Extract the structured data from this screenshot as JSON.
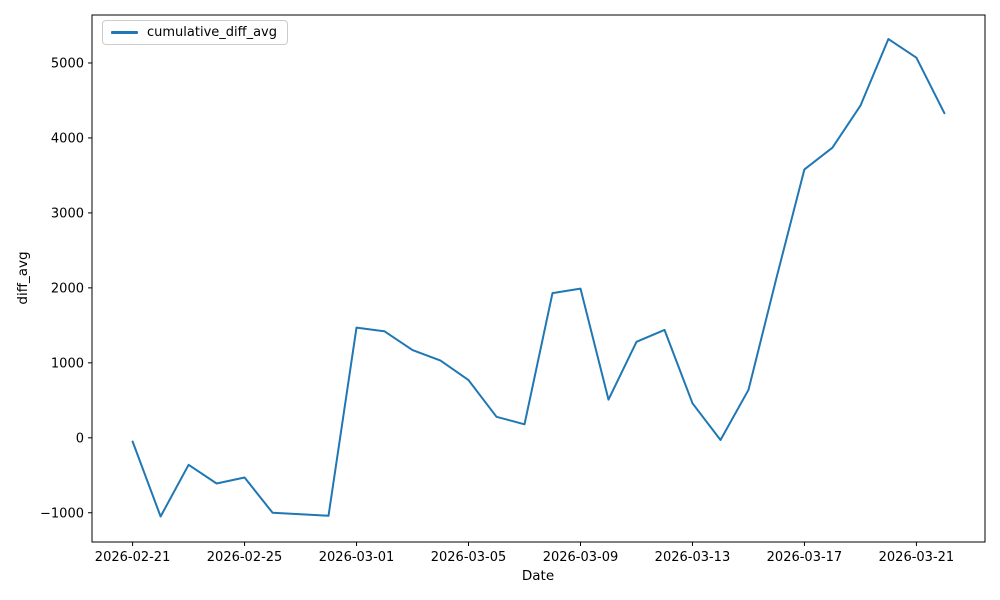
{
  "chart_data": {
    "type": "line",
    "title": "",
    "xlabel": "Date",
    "ylabel": "diff_avg",
    "legend_label": "cumulative_diff_avg",
    "legend_position": "upper left",
    "line_color": "#1f77b4",
    "grid": false,
    "x": [
      "2026-02-21",
      "2026-02-22",
      "2026-02-23",
      "2026-02-24",
      "2026-02-25",
      "2026-02-26",
      "2026-02-27",
      "2026-02-28",
      "2026-03-01",
      "2026-03-02",
      "2026-03-03",
      "2026-03-04",
      "2026-03-05",
      "2026-03-06",
      "2026-03-07",
      "2026-03-08",
      "2026-03-09",
      "2026-03-10",
      "2026-03-11",
      "2026-03-12",
      "2026-03-13",
      "2026-03-14",
      "2026-03-15",
      "2026-03-16",
      "2026-03-17",
      "2026-03-18",
      "2026-03-19",
      "2026-03-20",
      "2026-03-21",
      "2026-03-22"
    ],
    "series": [
      {
        "name": "cumulative_diff_avg",
        "values": [
          -50,
          -1050,
          -360,
          -610,
          -530,
          -1000,
          -1020,
          -1040,
          1470,
          1420,
          1170,
          1030,
          770,
          280,
          180,
          1930,
          1990,
          510,
          1280,
          1440,
          460,
          -30,
          640,
          2130,
          3580,
          3870,
          4430,
          5320,
          5070,
          4330
        ]
      }
    ],
    "x_tick_labels": [
      "2026-02-21",
      "2026-02-25",
      "2026-03-01",
      "2026-03-05",
      "2026-03-09",
      "2026-03-13",
      "2026-03-17",
      "2026-03-21"
    ],
    "y_ticks": [
      {
        "value": -1000,
        "label": "−1000"
      },
      {
        "value": 0,
        "label": "0"
      },
      {
        "value": 1000,
        "label": "1000"
      },
      {
        "value": 2000,
        "label": "2000"
      },
      {
        "value": 3000,
        "label": "3000"
      },
      {
        "value": 4000,
        "label": "4000"
      },
      {
        "value": 5000,
        "label": "5000"
      }
    ],
    "xlim_days": [
      -1.45,
      30.45
    ],
    "ylim": [
      -1390,
      5640
    ]
  }
}
